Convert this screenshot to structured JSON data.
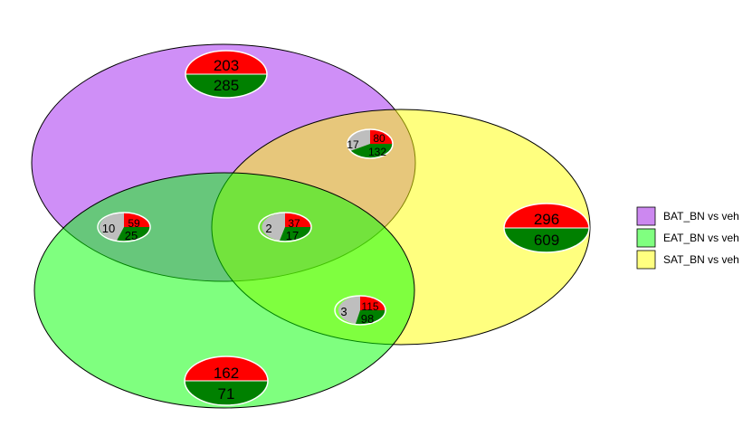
{
  "sets": [
    {
      "name": "BAT_BN vs veh",
      "color": "#A020F0"
    },
    {
      "name": "EAT_BN vs veh",
      "color": "#00FF00"
    },
    {
      "name": "SAT_BN vs veh",
      "color": "#FFFF00"
    }
  ],
  "colors": {
    "up": "#FF0000",
    "down": "#008000",
    "mixed": "#BEBEBE",
    "outline": "#000000"
  },
  "regions": {
    "bat_only": {
      "up": "203",
      "down": "285"
    },
    "eat_only": {
      "up": "162",
      "down": "71"
    },
    "sat_only": {
      "up": "296",
      "down": "609"
    },
    "bat_sat": {
      "mixed": "17",
      "up": "80",
      "down": "132"
    },
    "bat_eat": {
      "mixed": "10",
      "up": "59",
      "down": "25"
    },
    "all_three": {
      "mixed": "2",
      "up": "37",
      "down": "17"
    },
    "eat_sat": {
      "mixed": "3",
      "up": "115",
      "down": "98"
    }
  }
}
